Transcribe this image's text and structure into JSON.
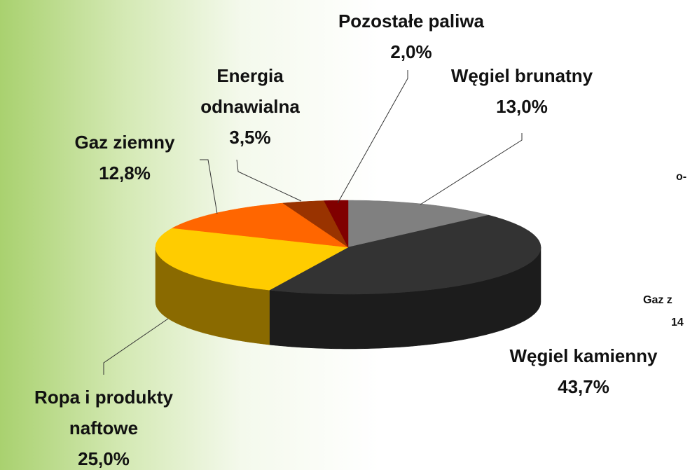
{
  "chart_data": {
    "type": "pie",
    "categories": [
      "Węgiel brunatny",
      "Węgiel kamienny",
      "Ropa i produkty naftowe",
      "Gaz ziemny",
      "Energia odnawialna",
      "Pozostałe paliwa"
    ],
    "values": [
      13.0,
      43.7,
      25.0,
      12.8,
      3.5,
      2.0
    ],
    "value_labels": [
      "13,0%",
      "43,7%",
      "25,0%",
      "12,8%",
      "3,5%",
      "2,0%"
    ],
    "colors": [
      "#808080",
      "#333333",
      "#ffcc00",
      "#ff6600",
      "#993300",
      "#800000"
    ],
    "side_colors": [
      "#555555",
      "#1c1c1c",
      "#8a6a00",
      "#a84200",
      "#5e2000",
      "#4d0000"
    ]
  },
  "offscreen_labels": [
    "o-",
    "Gaz z",
    "14"
  ]
}
